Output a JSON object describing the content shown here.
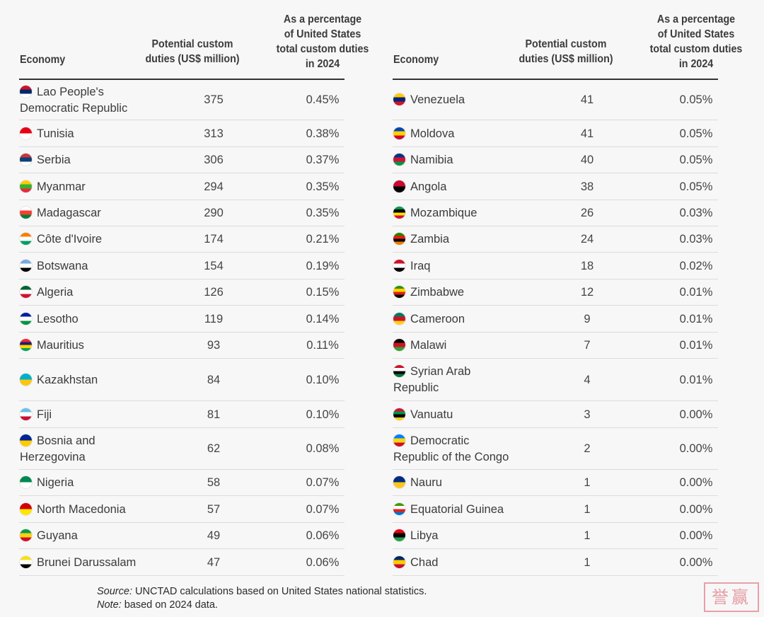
{
  "headers": {
    "economy": "Economy",
    "duties_line1": "Potential custom",
    "duties_line2": "duties (US$ million)",
    "pct_line1": "As a percentage",
    "pct_line2": "of United States",
    "pct_line3": "total custom duties",
    "pct_line4": "in 2024"
  },
  "left_rows": [
    {
      "economy": "Lao People's Democratic Republic",
      "duties": "375",
      "pct": "0.45%",
      "flag": "lao-flag-icon",
      "flag_colors": [
        "#ce1126",
        "#002868",
        "#ffffff"
      ]
    },
    {
      "economy": "Tunisia",
      "duties": "313",
      "pct": "0.38%",
      "flag": "tunisia-flag-icon",
      "flag_colors": [
        "#e70013",
        "#ffffff"
      ]
    },
    {
      "economy": "Serbia",
      "duties": "306",
      "pct": "0.37%",
      "flag": "serbia-flag-icon",
      "flag_colors": [
        "#c6363c",
        "#0c4076",
        "#ffffff"
      ]
    },
    {
      "economy": "Myanmar",
      "duties": "294",
      "pct": "0.35%",
      "flag": "myanmar-flag-icon",
      "flag_colors": [
        "#fecb00",
        "#34b233",
        "#ea2839"
      ]
    },
    {
      "economy": "Madagascar",
      "duties": "290",
      "pct": "0.35%",
      "flag": "madagascar-flag-icon",
      "flag_colors": [
        "#ffffff",
        "#fc3d32",
        "#007e3a"
      ]
    },
    {
      "economy": "Côte d'Ivoire",
      "duties": "174",
      "pct": "0.21%",
      "flag": "cote-divoire-flag-icon",
      "flag_colors": [
        "#f77f00",
        "#ffffff",
        "#009e60"
      ]
    },
    {
      "economy": "Botswana",
      "duties": "154",
      "pct": "0.19%",
      "flag": "botswana-flag-icon",
      "flag_colors": [
        "#75aadb",
        "#ffffff",
        "#000000"
      ]
    },
    {
      "economy": "Algeria",
      "duties": "126",
      "pct": "0.15%",
      "flag": "algeria-flag-icon",
      "flag_colors": [
        "#006233",
        "#ffffff",
        "#d21034"
      ]
    },
    {
      "economy": "Lesotho",
      "duties": "119",
      "pct": "0.14%",
      "flag": "lesotho-flag-icon",
      "flag_colors": [
        "#00209f",
        "#ffffff",
        "#009543"
      ]
    },
    {
      "economy": "Mauritius",
      "duties": "93",
      "pct": "0.11%",
      "flag": "mauritius-flag-icon",
      "flag_colors": [
        "#ea2839",
        "#1a206d",
        "#ffd500",
        "#00a551"
      ]
    },
    {
      "economy": "Kazakhstan",
      "duties": "84",
      "pct": "0.10%",
      "flag": "kazakhstan-flag-icon",
      "flag_colors": [
        "#00afca",
        "#fec50c"
      ]
    },
    {
      "economy": "Fiji",
      "duties": "81",
      "pct": "0.10%",
      "flag": "fiji-flag-icon",
      "flag_colors": [
        "#68bfe5",
        "#ffffff",
        "#c8102e"
      ]
    },
    {
      "economy": "Bosnia and Herzegovina",
      "duties": "62",
      "pct": "0.08%",
      "flag": "bosnia-flag-icon",
      "flag_colors": [
        "#002395",
        "#fecb00"
      ]
    },
    {
      "economy": "Nigeria",
      "duties": "58",
      "pct": "0.07%",
      "flag": "nigeria-flag-icon",
      "flag_colors": [
        "#008751",
        "#ffffff"
      ]
    },
    {
      "economy": "North Macedonia",
      "duties": "57",
      "pct": "0.07%",
      "flag": "north-macedonia-flag-icon",
      "flag_colors": [
        "#d20000",
        "#ffe600"
      ]
    },
    {
      "economy": "Guyana",
      "duties": "49",
      "pct": "0.06%",
      "flag": "guyana-flag-icon",
      "flag_colors": [
        "#009e49",
        "#fcd116",
        "#ce1126"
      ]
    },
    {
      "economy": "Brunei Darussalam",
      "duties": "47",
      "pct": "0.06%",
      "flag": "brunei-flag-icon",
      "flag_colors": [
        "#f7e017",
        "#ffffff",
        "#000000"
      ]
    }
  ],
  "right_rows": [
    {
      "economy": "Venezuela",
      "duties": "41",
      "pct": "0.05%",
      "flag": "venezuela-flag-icon",
      "flag_colors": [
        "#ffcc00",
        "#00247d",
        "#cf142b"
      ]
    },
    {
      "economy": "Moldova",
      "duties": "41",
      "pct": "0.05%",
      "flag": "moldova-flag-icon",
      "flag_colors": [
        "#0046ae",
        "#ffd200",
        "#cc092f"
      ]
    },
    {
      "economy": "Namibia",
      "duties": "40",
      "pct": "0.05%",
      "flag": "namibia-flag-icon",
      "flag_colors": [
        "#003580",
        "#d21034",
        "#009543"
      ]
    },
    {
      "economy": "Angola",
      "duties": "38",
      "pct": "0.05%",
      "flag": "angola-flag-icon",
      "flag_colors": [
        "#cc092f",
        "#000000"
      ]
    },
    {
      "economy": "Mozambique",
      "duties": "26",
      "pct": "0.03%",
      "flag": "mozambique-flag-icon",
      "flag_colors": [
        "#009a44",
        "#000000",
        "#fce100",
        "#d21034"
      ]
    },
    {
      "economy": "Zambia",
      "duties": "24",
      "pct": "0.03%",
      "flag": "zambia-flag-icon",
      "flag_colors": [
        "#198a00",
        "#de2010",
        "#000000",
        "#ef7d00"
      ]
    },
    {
      "economy": "Iraq",
      "duties": "18",
      "pct": "0.02%",
      "flag": "iraq-flag-icon",
      "flag_colors": [
        "#ce1126",
        "#ffffff",
        "#000000"
      ]
    },
    {
      "economy": "Zimbabwe",
      "duties": "12",
      "pct": "0.01%",
      "flag": "zimbabwe-flag-icon",
      "flag_colors": [
        "#319208",
        "#ffd200",
        "#de2010",
        "#000000"
      ]
    },
    {
      "economy": "Cameroon",
      "duties": "9",
      "pct": "0.01%",
      "flag": "cameroon-flag-icon",
      "flag_colors": [
        "#007a5e",
        "#ce1126",
        "#fcd116"
      ]
    },
    {
      "economy": "Malawi",
      "duties": "7",
      "pct": "0.01%",
      "flag": "malawi-flag-icon",
      "flag_colors": [
        "#000000",
        "#ce1126",
        "#339e35"
      ]
    },
    {
      "economy": "Syrian Arab Republic",
      "duties": "4",
      "pct": "0.01%",
      "flag": "syria-flag-icon",
      "flag_colors": [
        "#ce1126",
        "#ffffff",
        "#000000",
        "#007a3d"
      ]
    },
    {
      "economy": "Vanuatu",
      "duties": "3",
      "pct": "0.00%",
      "flag": "vanuatu-flag-icon",
      "flag_colors": [
        "#d21034",
        "#009543",
        "#000000",
        "#fdce12"
      ]
    },
    {
      "economy": "Democratic Republic of the Congo",
      "duties": "2",
      "pct": "0.00%",
      "flag": "drc-flag-icon",
      "flag_colors": [
        "#007fff",
        "#f7d618",
        "#ce1021"
      ]
    },
    {
      "economy": "Nauru",
      "duties": "1",
      "pct": "0.00%",
      "flag": "nauru-flag-icon",
      "flag_colors": [
        "#002b7f",
        "#ffc61e"
      ]
    },
    {
      "economy": "Equatorial Guinea",
      "duties": "1",
      "pct": "0.00%",
      "flag": "equatorial-guinea-flag-icon",
      "flag_colors": [
        "#3e9a00",
        "#ffffff",
        "#e32118",
        "#0073ce"
      ]
    },
    {
      "economy": "Libya",
      "duties": "1",
      "pct": "0.00%",
      "flag": "libya-flag-icon",
      "flag_colors": [
        "#e70013",
        "#000000",
        "#239e46"
      ]
    },
    {
      "economy": "Chad",
      "duties": "1",
      "pct": "0.00%",
      "flag": "chad-flag-icon",
      "flag_colors": [
        "#002664",
        "#fecb00",
        "#c60c30"
      ]
    }
  ],
  "notes": {
    "source_label": "Source:",
    "source_text": " UNCTAD calculations based on United States national statistics.",
    "note_label": "Note:",
    "note_text": " based on 2024 data."
  },
  "stamp": "誉赢"
}
